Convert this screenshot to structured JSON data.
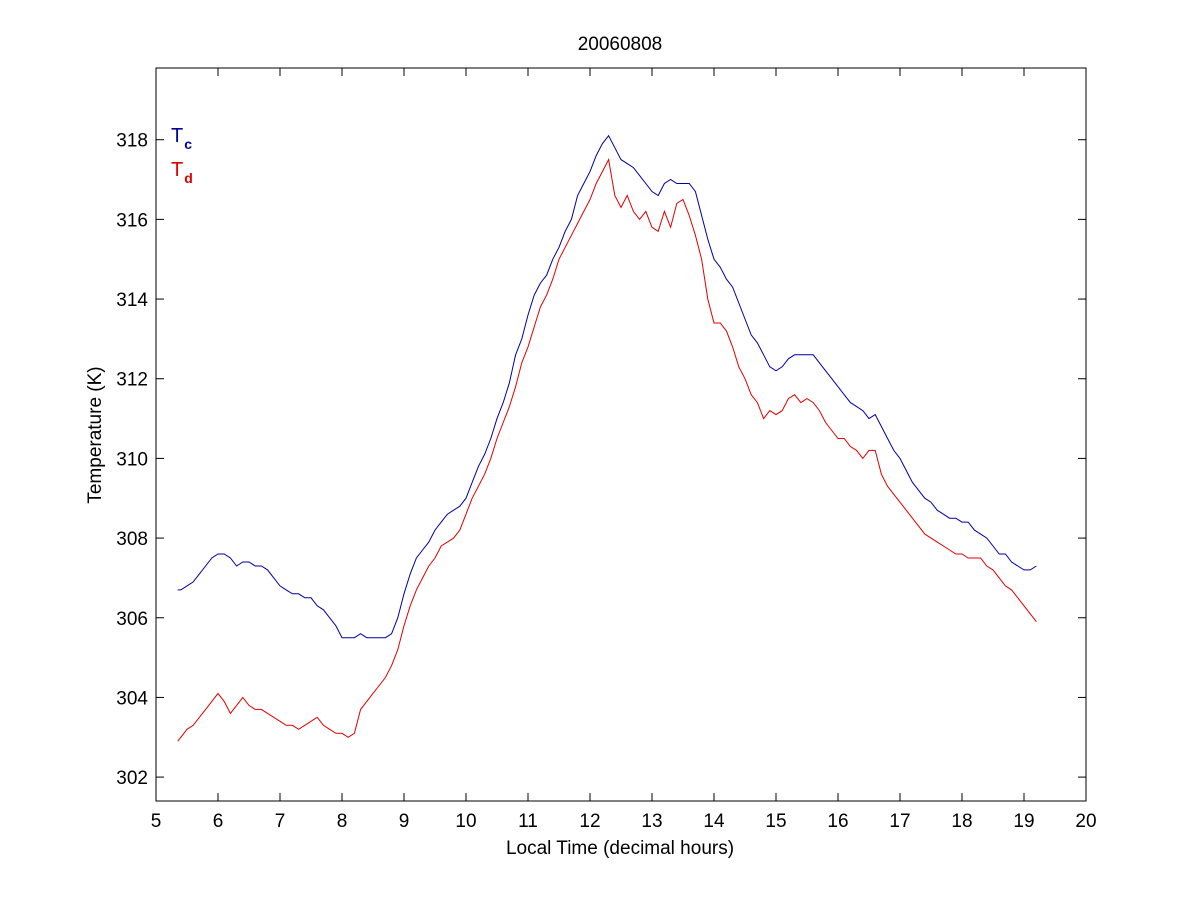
{
  "chart_data": {
    "type": "line",
    "title": "20060808",
    "xlabel": "Local Time (decimal hours)",
    "ylabel": "Temperature (K)",
    "xlim": [
      5,
      20
    ],
    "ylim": [
      301.4,
      319.8
    ],
    "xticks": [
      5,
      6,
      7,
      8,
      9,
      10,
      11,
      12,
      13,
      14,
      15,
      16,
      17,
      18,
      19,
      20
    ],
    "yticks": [
      302,
      304,
      306,
      308,
      310,
      312,
      314,
      316,
      318
    ],
    "grid": false,
    "legend_position": "top-left",
    "series": [
      {
        "name": "T",
        "subscript": "c",
        "color": "#0000a0",
        "x": [
          5.35,
          5.4,
          5.5,
          5.6,
          5.7,
          5.8,
          5.9,
          6.0,
          6.1,
          6.2,
          6.3,
          6.4,
          6.5,
          6.6,
          6.7,
          6.8,
          6.9,
          7.0,
          7.1,
          7.2,
          7.3,
          7.4,
          7.5,
          7.6,
          7.7,
          7.8,
          7.9,
          8.0,
          8.1,
          8.2,
          8.3,
          8.4,
          8.5,
          8.6,
          8.7,
          8.8,
          8.9,
          9.0,
          9.1,
          9.2,
          9.3,
          9.4,
          9.5,
          9.6,
          9.7,
          9.8,
          9.9,
          10.0,
          10.1,
          10.2,
          10.3,
          10.4,
          10.5,
          10.6,
          10.7,
          10.8,
          10.9,
          11.0,
          11.1,
          11.2,
          11.3,
          11.4,
          11.5,
          11.6,
          11.7,
          11.8,
          11.9,
          12.0,
          12.1,
          12.2,
          12.3,
          12.4,
          12.5,
          12.6,
          12.7,
          12.8,
          12.9,
          13.0,
          13.1,
          13.2,
          13.3,
          13.4,
          13.5,
          13.6,
          13.7,
          13.8,
          13.9,
          14.0,
          14.1,
          14.2,
          14.3,
          14.4,
          14.5,
          14.6,
          14.7,
          14.8,
          14.9,
          15.0,
          15.1,
          15.2,
          15.3,
          15.4,
          15.5,
          15.6,
          15.7,
          15.8,
          15.9,
          16.0,
          16.1,
          16.2,
          16.3,
          16.4,
          16.5,
          16.6,
          16.7,
          16.8,
          16.9,
          17.0,
          17.1,
          17.2,
          17.3,
          17.4,
          17.5,
          17.6,
          17.7,
          17.8,
          17.9,
          18.0,
          18.1,
          18.2,
          18.3,
          18.4,
          18.5,
          18.6,
          18.7,
          18.8,
          18.9,
          19.0,
          19.1,
          19.2
        ],
        "y": [
          306.7,
          306.7,
          306.8,
          306.9,
          307.1,
          307.3,
          307.5,
          307.6,
          307.6,
          307.5,
          307.3,
          307.4,
          307.4,
          307.3,
          307.3,
          307.2,
          307.0,
          306.8,
          306.7,
          306.6,
          306.6,
          306.5,
          306.5,
          306.3,
          306.2,
          306.0,
          305.8,
          305.5,
          305.5,
          305.5,
          305.6,
          305.5,
          305.5,
          305.5,
          305.5,
          305.6,
          306.0,
          306.6,
          307.1,
          307.5,
          307.7,
          307.9,
          308.2,
          308.4,
          308.6,
          308.7,
          308.8,
          309.0,
          309.4,
          309.8,
          310.1,
          310.5,
          311.0,
          311.4,
          311.9,
          312.6,
          313.0,
          313.6,
          314.1,
          314.4,
          314.6,
          315.0,
          315.3,
          315.7,
          316.0,
          316.6,
          316.9,
          317.2,
          317.6,
          317.9,
          318.1,
          317.8,
          317.5,
          317.4,
          317.3,
          317.1,
          316.9,
          316.7,
          316.6,
          316.9,
          317.0,
          316.9,
          316.9,
          316.9,
          316.7,
          316.1,
          315.5,
          315.0,
          314.8,
          314.5,
          314.3,
          313.9,
          313.5,
          313.1,
          312.9,
          312.6,
          312.3,
          312.2,
          312.3,
          312.5,
          312.6,
          312.6,
          312.6,
          312.6,
          312.4,
          312.2,
          312.0,
          311.8,
          311.6,
          311.4,
          311.3,
          311.2,
          311.0,
          311.1,
          310.8,
          310.5,
          310.2,
          310.0,
          309.7,
          309.4,
          309.2,
          309.0,
          308.9,
          308.7,
          308.6,
          308.5,
          308.5,
          308.4,
          308.4,
          308.2,
          308.1,
          308.0,
          307.8,
          307.6,
          307.6,
          307.4,
          307.3,
          307.2,
          307.2,
          307.3
        ]
      },
      {
        "name": "T",
        "subscript": "d",
        "color": "#e00000",
        "x": [
          5.35,
          5.4,
          5.5,
          5.6,
          5.7,
          5.8,
          5.9,
          6.0,
          6.1,
          6.2,
          6.3,
          6.4,
          6.5,
          6.6,
          6.7,
          6.8,
          6.9,
          7.0,
          7.1,
          7.2,
          7.3,
          7.4,
          7.5,
          7.6,
          7.7,
          7.8,
          7.9,
          8.0,
          8.1,
          8.2,
          8.3,
          8.4,
          8.5,
          8.6,
          8.7,
          8.8,
          8.9,
          9.0,
          9.1,
          9.2,
          9.3,
          9.4,
          9.5,
          9.6,
          9.7,
          9.8,
          9.9,
          10.0,
          10.1,
          10.2,
          10.3,
          10.4,
          10.5,
          10.6,
          10.7,
          10.8,
          10.9,
          11.0,
          11.1,
          11.2,
          11.3,
          11.4,
          11.5,
          11.6,
          11.7,
          11.8,
          11.9,
          12.0,
          12.1,
          12.2,
          12.3,
          12.4,
          12.5,
          12.6,
          12.7,
          12.8,
          12.9,
          13.0,
          13.1,
          13.2,
          13.3,
          13.4,
          13.5,
          13.6,
          13.7,
          13.8,
          13.9,
          14.0,
          14.1,
          14.2,
          14.3,
          14.4,
          14.5,
          14.6,
          14.7,
          14.8,
          14.9,
          15.0,
          15.1,
          15.2,
          15.3,
          15.4,
          15.5,
          15.6,
          15.7,
          15.8,
          15.9,
          16.0,
          16.1,
          16.2,
          16.3,
          16.4,
          16.5,
          16.6,
          16.7,
          16.8,
          16.9,
          17.0,
          17.1,
          17.2,
          17.3,
          17.4,
          17.5,
          17.6,
          17.7,
          17.8,
          17.9,
          18.0,
          18.1,
          18.2,
          18.3,
          18.4,
          18.5,
          18.6,
          18.7,
          18.8,
          18.9,
          19.0,
          19.1,
          19.2
        ],
        "y": [
          302.9,
          303.0,
          303.2,
          303.3,
          303.5,
          303.7,
          303.9,
          304.1,
          303.9,
          303.6,
          303.8,
          304.0,
          303.8,
          303.7,
          303.7,
          303.6,
          303.5,
          303.4,
          303.3,
          303.3,
          303.2,
          303.3,
          303.4,
          303.5,
          303.3,
          303.2,
          303.1,
          303.1,
          303.0,
          303.1,
          303.7,
          303.9,
          304.1,
          304.3,
          304.5,
          304.8,
          305.2,
          305.8,
          306.3,
          306.7,
          307.0,
          307.3,
          307.5,
          307.8,
          307.9,
          308.0,
          308.2,
          308.6,
          309.0,
          309.3,
          309.6,
          310.0,
          310.5,
          310.9,
          311.3,
          311.8,
          312.4,
          312.8,
          313.3,
          313.8,
          314.1,
          314.5,
          315.0,
          315.3,
          315.6,
          315.9,
          316.2,
          316.5,
          316.9,
          317.2,
          317.5,
          316.6,
          316.3,
          316.6,
          316.2,
          316.0,
          316.2,
          315.8,
          315.7,
          316.2,
          315.8,
          316.4,
          316.5,
          316.1,
          315.6,
          315.0,
          314.0,
          313.4,
          313.4,
          313.2,
          312.8,
          312.3,
          312.0,
          311.6,
          311.4,
          311.0,
          311.2,
          311.1,
          311.2,
          311.5,
          311.6,
          311.4,
          311.5,
          311.4,
          311.2,
          310.9,
          310.7,
          310.5,
          310.5,
          310.3,
          310.2,
          310.0,
          310.2,
          310.2,
          309.6,
          309.3,
          309.1,
          308.9,
          308.7,
          308.5,
          308.3,
          308.1,
          308.0,
          307.9,
          307.8,
          307.7,
          307.6,
          307.6,
          307.5,
          307.5,
          307.5,
          307.3,
          307.2,
          307.0,
          306.8,
          306.7,
          306.5,
          306.3,
          306.1,
          305.9
        ]
      }
    ]
  }
}
